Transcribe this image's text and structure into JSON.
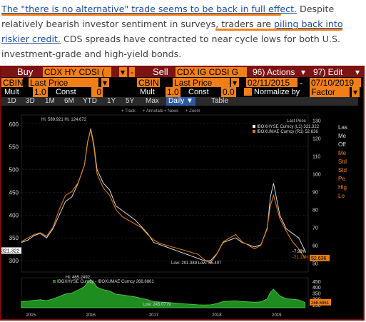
{
  "article": {
    "link1": "The \"there is no alternative\" trade seems to be back in full effect.",
    "text1": " Despite relatively bearish investor sentiment in surveys, traders are ",
    "link2": "piling back into riskier credit.",
    "text2": " CDS spreads have contracted to near cycle lows for both U.S. investment-grade and high-yield bonds."
  },
  "toolbar": {
    "buy_label": "Buy",
    "buy_ticker": "CDX HY CDSI (",
    "sell_label": "Sell",
    "sell_ticker": "CDX IG CDSI G",
    "actions_label": "96) Actions",
    "edit_label": "97) Edit",
    "arrow": "▾"
  },
  "row2": {
    "source1": "CBIN",
    "price1": "Last Price",
    "source2": "CBIN",
    "price2": "Last Price",
    "date_from": "02/11/2015",
    "date_to": "07/10/2019",
    "dash": "-"
  },
  "row3": {
    "mult1_label": "Mult",
    "mult1_value": "1.0",
    "const1_label": "Const",
    "const1_value": "0",
    "mult2_label": "Mult",
    "mult2_value": "1.0",
    "const2_label": "Const",
    "const2_value": "0.0",
    "normalize_label": "Normalize by",
    "normalize_value": "Factor"
  },
  "tabs": [
    "1D",
    "3D",
    "1M",
    "6M",
    "YTD",
    "1Y",
    "5Y",
    "Max",
    "Daily ▼",
    "Table"
  ],
  "chart_tools": [
    "Track",
    "Annotate",
    "News",
    "Zoom"
  ],
  "right_panel": [
    "Las",
    "Me",
    "Off",
    "Me",
    "Std",
    "Std",
    "Pe",
    "Hig",
    "Lo"
  ],
  "colors": {
    "white_series": "#f2f2f2",
    "orange_series": "#e07f10",
    "green_area": "#1f8c1f",
    "brand": "#7d1414",
    "field": "#f07f1a"
  },
  "chart_data": [
    {
      "type": "line",
      "title": "",
      "xlabel": "",
      "ylabel": "",
      "left_axis": {
        "ticks": [
          300,
          350,
          400,
          450,
          500,
          550,
          600
        ],
        "ylim": [
          275,
          620
        ]
      },
      "right_axis": {
        "ticks": [
          50,
          60,
          70,
          80,
          90,
          100,
          110,
          120,
          130
        ],
        "ylim": [
          45,
          133
        ]
      },
      "x_labels": [
        "2015",
        "2016",
        "2017",
        "2018",
        "2019"
      ],
      "legend": {
        "header": "Last Price",
        "items": [
          "IBOXHYSE Curncy (L1) 321.322",
          "IBOXUMAE Curncy (R1) 52.636"
        ]
      },
      "annotations": {
        "high": "Hi: 589.921 Hi: 124.672",
        "low": "Low: 291.389 Low: 45.407",
        "chg1": "-7.99%",
        "chg2": "-21.12%",
        "last_left": "321.322",
        "last_right": "52.636"
      },
      "series": [
        {
          "name": "IBOXHYSE Curncy",
          "axis": "left",
          "x": [
            2015.0,
            2015.1,
            2015.2,
            2015.3,
            2015.4,
            2015.5,
            2015.6,
            2015.7,
            2015.8,
            2015.9,
            2016.0,
            2016.05,
            2016.1,
            2016.15,
            2016.2,
            2016.3,
            2016.4,
            2016.5,
            2016.6,
            2016.7,
            2016.8,
            2016.9,
            2017.0,
            2017.1,
            2017.2,
            2017.3,
            2017.4,
            2017.5,
            2017.6,
            2017.7,
            2017.8,
            2017.9,
            2018.0,
            2018.1,
            2018.2,
            2018.3,
            2018.4,
            2018.5,
            2018.6,
            2018.7,
            2018.8,
            2018.9,
            2018.95,
            2019.0,
            2019.1,
            2019.2,
            2019.3,
            2019.4,
            2019.5
          ],
          "values": [
            340,
            345,
            355,
            360,
            350,
            370,
            400,
            430,
            440,
            470,
            510,
            560,
            590,
            555,
            500,
            470,
            455,
            420,
            410,
            400,
            390,
            375,
            360,
            340,
            335,
            330,
            325,
            320,
            315,
            310,
            305,
            300,
            300,
            315,
            340,
            345,
            350,
            340,
            335,
            330,
            335,
            370,
            440,
            470,
            400,
            370,
            360,
            350,
            321.322
          ]
        },
        {
          "name": "IBOXUMAE Curncy",
          "axis": "right",
          "x": [
            2015.0,
            2015.1,
            2015.2,
            2015.3,
            2015.4,
            2015.5,
            2015.6,
            2015.7,
            2015.8,
            2015.9,
            2016.0,
            2016.05,
            2016.1,
            2016.15,
            2016.2,
            2016.3,
            2016.4,
            2016.5,
            2016.6,
            2016.7,
            2016.8,
            2016.9,
            2017.0,
            2017.1,
            2017.2,
            2017.3,
            2017.4,
            2017.5,
            2017.6,
            2017.7,
            2017.8,
            2017.9,
            2018.0,
            2018.1,
            2018.2,
            2018.3,
            2018.4,
            2018.5,
            2018.6,
            2018.7,
            2018.8,
            2018.9,
            2018.95,
            2019.0,
            2019.1,
            2019.2,
            2019.3,
            2019.4,
            2019.5
          ],
          "values": [
            62,
            64,
            66,
            67,
            65,
            70,
            80,
            88,
            90,
            95,
            105,
            118,
            124.672,
            115,
            100,
            92,
            88,
            80,
            76,
            74,
            72,
            70,
            66,
            63,
            61,
            60,
            59,
            58,
            57,
            56,
            55,
            52,
            50,
            55,
            62,
            64,
            66,
            62,
            60,
            58,
            60,
            70,
            82,
            88,
            75,
            68,
            62,
            58,
            52.636
          ]
        }
      ]
    },
    {
      "type": "area",
      "title": "",
      "legend": {
        "items": [
          "IBOXHYSE Curncy - IBOXUMAE Curncy 268.6861"
        ]
      },
      "annotations": {
        "high": "Hi: 465.2492",
        "low": "Low: 245.0779",
        "last": "268.6861"
      },
      "y_ticks": [
        250,
        300,
        350,
        400,
        450
      ],
      "ylim": [
        225,
        480
      ],
      "series": [
        {
          "name": "IBOXHYSE Curncy - IBOXUMAE Curncy",
          "x": [
            2015.0,
            2015.1,
            2015.2,
            2015.3,
            2015.4,
            2015.5,
            2015.6,
            2015.7,
            2015.8,
            2015.9,
            2016.0,
            2016.05,
            2016.1,
            2016.15,
            2016.2,
            2016.3,
            2016.4,
            2016.5,
            2016.6,
            2016.7,
            2016.8,
            2016.9,
            2017.0,
            2017.1,
            2017.2,
            2017.3,
            2017.4,
            2017.5,
            2017.6,
            2017.7,
            2017.8,
            2017.9,
            2018.0,
            2018.1,
            2018.2,
            2018.3,
            2018.4,
            2018.5,
            2018.6,
            2018.7,
            2018.8,
            2018.9,
            2018.95,
            2019.0,
            2019.1,
            2019.2,
            2019.3,
            2019.4,
            2019.5
          ],
          "values": [
            278,
            281,
            289,
            293,
            285,
            300,
            320,
            342,
            350,
            375,
            405,
            442,
            465.2492,
            440,
            400,
            378,
            367,
            340,
            334,
            326,
            318,
            305,
            294,
            277,
            274,
            270,
            266,
            262,
            258,
            254,
            250,
            248,
            250,
            260,
            278,
            281,
            284,
            278,
            275,
            272,
            275,
            300,
            358,
            382,
            325,
            302,
            298,
            292,
            268.6861
          ]
        }
      ]
    }
  ]
}
